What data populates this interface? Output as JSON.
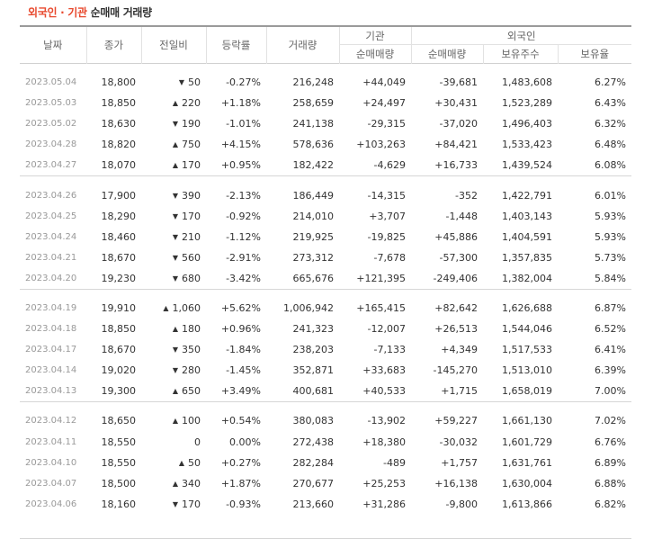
{
  "title": {
    "accent": "외국인 · 기관",
    "rest": " 순매매 거래량"
  },
  "headers": {
    "date": "날짜",
    "close": "종가",
    "change": "전일비",
    "rate": "등락률",
    "volume": "거래량",
    "inst": "기관",
    "inst_net": "순매매량",
    "foreign": "외국인",
    "foreign_net": "순매매량",
    "foreign_hold": "보유주수",
    "foreign_ratio": "보유율"
  },
  "groups": [
    [
      {
        "date": "2023.05.04",
        "close": "18,800",
        "dir": "down",
        "change": "50",
        "rate": "-0.27%",
        "volume": "216,248",
        "inst": "+44,049",
        "foreign": "-39,681",
        "hold": "1,483,608",
        "ratio": "6.27%"
      },
      {
        "date": "2023.05.03",
        "close": "18,850",
        "dir": "up",
        "change": "220",
        "rate": "+1.18%",
        "volume": "258,659",
        "inst": "+24,497",
        "foreign": "+30,431",
        "hold": "1,523,289",
        "ratio": "6.43%"
      },
      {
        "date": "2023.05.02",
        "close": "18,630",
        "dir": "down",
        "change": "190",
        "rate": "-1.01%",
        "volume": "241,138",
        "inst": "-29,315",
        "foreign": "-37,020",
        "hold": "1,496,403",
        "ratio": "6.32%"
      },
      {
        "date": "2023.04.28",
        "close": "18,820",
        "dir": "up",
        "change": "750",
        "rate": "+4.15%",
        "volume": "578,636",
        "inst": "+103,263",
        "foreign": "+84,421",
        "hold": "1,533,423",
        "ratio": "6.48%"
      },
      {
        "date": "2023.04.27",
        "close": "18,070",
        "dir": "up",
        "change": "170",
        "rate": "+0.95%",
        "volume": "182,422",
        "inst": "-4,629",
        "foreign": "+16,733",
        "hold": "1,439,524",
        "ratio": "6.08%"
      }
    ],
    [
      {
        "date": "2023.04.26",
        "close": "17,900",
        "dir": "down",
        "change": "390",
        "rate": "-2.13%",
        "volume": "186,449",
        "inst": "-14,315",
        "foreign": "-352",
        "hold": "1,422,791",
        "ratio": "6.01%"
      },
      {
        "date": "2023.04.25",
        "close": "18,290",
        "dir": "down",
        "change": "170",
        "rate": "-0.92%",
        "volume": "214,010",
        "inst": "+3,707",
        "foreign": "-1,448",
        "hold": "1,403,143",
        "ratio": "5.93%"
      },
      {
        "date": "2023.04.24",
        "close": "18,460",
        "dir": "down",
        "change": "210",
        "rate": "-1.12%",
        "volume": "219,925",
        "inst": "-19,825",
        "foreign": "+45,886",
        "hold": "1,404,591",
        "ratio": "5.93%"
      },
      {
        "date": "2023.04.21",
        "close": "18,670",
        "dir": "down",
        "change": "560",
        "rate": "-2.91%",
        "volume": "273,312",
        "inst": "-7,678",
        "foreign": "-57,300",
        "hold": "1,357,835",
        "ratio": "5.73%"
      },
      {
        "date": "2023.04.20",
        "close": "19,230",
        "dir": "down",
        "change": "680",
        "rate": "-3.42%",
        "volume": "665,676",
        "inst": "+121,395",
        "foreign": "-249,406",
        "hold": "1,382,004",
        "ratio": "5.84%"
      }
    ],
    [
      {
        "date": "2023.04.19",
        "close": "19,910",
        "dir": "up",
        "change": "1,060",
        "rate": "+5.62%",
        "volume": "1,006,942",
        "inst": "+165,415",
        "foreign": "+82,642",
        "hold": "1,626,688",
        "ratio": "6.87%"
      },
      {
        "date": "2023.04.18",
        "close": "18,850",
        "dir": "up",
        "change": "180",
        "rate": "+0.96%",
        "volume": "241,323",
        "inst": "-12,007",
        "foreign": "+26,513",
        "hold": "1,544,046",
        "ratio": "6.52%"
      },
      {
        "date": "2023.04.17",
        "close": "18,670",
        "dir": "down",
        "change": "350",
        "rate": "-1.84%",
        "volume": "238,203",
        "inst": "-7,133",
        "foreign": "+4,349",
        "hold": "1,517,533",
        "ratio": "6.41%"
      },
      {
        "date": "2023.04.14",
        "close": "19,020",
        "dir": "down",
        "change": "280",
        "rate": "-1.45%",
        "volume": "352,871",
        "inst": "+33,683",
        "foreign": "-145,270",
        "hold": "1,513,010",
        "ratio": "6.39%"
      },
      {
        "date": "2023.04.13",
        "close": "19,300",
        "dir": "up",
        "change": "650",
        "rate": "+3.49%",
        "volume": "400,681",
        "inst": "+40,533",
        "foreign": "+1,715",
        "hold": "1,658,019",
        "ratio": "7.00%"
      }
    ],
    [
      {
        "date": "2023.04.12",
        "close": "18,650",
        "dir": "up",
        "change": "100",
        "rate": "+0.54%",
        "volume": "380,083",
        "inst": "-13,902",
        "foreign": "+59,227",
        "hold": "1,661,130",
        "ratio": "7.02%"
      },
      {
        "date": "2023.04.11",
        "close": "18,550",
        "dir": "none",
        "change": "0",
        "rate": "0.00%",
        "volume": "272,438",
        "inst": "+18,380",
        "foreign": "-30,032",
        "hold": "1,601,729",
        "ratio": "6.76%"
      },
      {
        "date": "2023.04.10",
        "close": "18,550",
        "dir": "up",
        "change": "50",
        "rate": "+0.27%",
        "volume": "282,284",
        "inst": "-489",
        "foreign": "+1,757",
        "hold": "1,631,761",
        "ratio": "6.89%"
      },
      {
        "date": "2023.04.07",
        "close": "18,500",
        "dir": "up",
        "change": "340",
        "rate": "+1.87%",
        "volume": "270,677",
        "inst": "+25,253",
        "foreign": "+16,138",
        "hold": "1,630,004",
        "ratio": "6.88%"
      },
      {
        "date": "2023.04.06",
        "close": "18,160",
        "dir": "down",
        "change": "170",
        "rate": "-0.93%",
        "volume": "213,660",
        "inst": "+31,286",
        "foreign": "-9,800",
        "hold": "1,613,866",
        "ratio": "6.82%"
      }
    ]
  ],
  "colors": {
    "up": "#d60000",
    "down": "#0b5ec6",
    "accent": "#e8492e"
  },
  "icons": {
    "up": "triangle-up-icon",
    "down": "triangle-down-icon"
  }
}
